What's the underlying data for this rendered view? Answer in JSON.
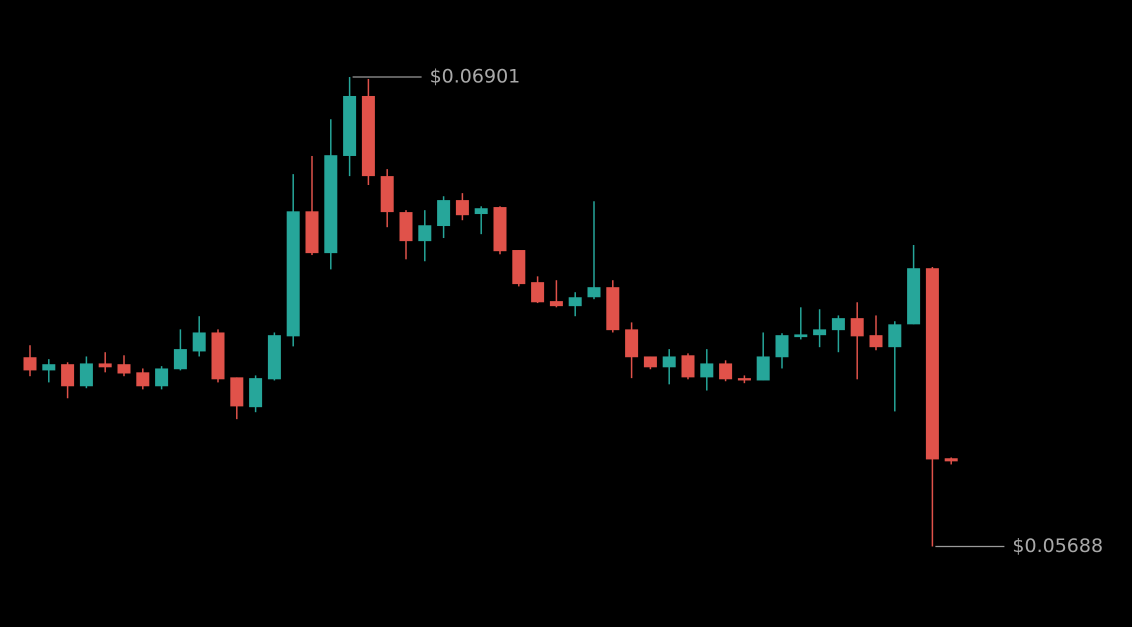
{
  "chart_data": {
    "type": "candlestick",
    "up_color": "#26a69a",
    "down_color": "#e0524a",
    "ylim": [
      0.0548,
      0.071
    ],
    "open": [
      0.06177,
      0.06143,
      0.06159,
      0.06102,
      0.06161,
      0.06159,
      0.06138,
      0.06102,
      0.06146,
      0.06192,
      0.06241,
      0.06125,
      0.06048,
      0.0612,
      0.06231,
      0.06554,
      0.06446,
      0.06697,
      0.06852,
      0.06645,
      0.06552,
      0.06477,
      0.06516,
      0.06583,
      0.06547,
      0.06565,
      0.06454,
      0.06371,
      0.06322,
      0.06309,
      0.06332,
      0.06358,
      0.06249,
      0.06179,
      0.06151,
      0.06182,
      0.06125,
      0.06161,
      0.06123,
      0.06117,
      0.06177,
      0.06229,
      0.06234,
      0.06247,
      0.06278,
      0.06234,
      0.06203,
      0.06262,
      0.06407,
      0.05916
    ],
    "high": [
      0.06208,
      0.06172,
      0.06164,
      0.06179,
      0.0619,
      0.06182,
      0.06148,
      0.06154,
      0.06249,
      0.06283,
      0.06249,
      0.06125,
      0.0613,
      0.06241,
      0.0665,
      0.06697,
      0.06792,
      0.06901,
      0.06896,
      0.06663,
      0.06557,
      0.06557,
      0.06593,
      0.06601,
      0.06567,
      0.06567,
      0.06454,
      0.06386,
      0.06376,
      0.06345,
      0.0658,
      0.06376,
      0.06267,
      0.06179,
      0.06198,
      0.06187,
      0.06198,
      0.06169,
      0.0613,
      0.06241,
      0.06239,
      0.06306,
      0.06301,
      0.06285,
      0.06319,
      0.06285,
      0.0627,
      0.06467,
      0.0641,
      0.05918
    ],
    "low": [
      0.06128,
      0.06112,
      0.06071,
      0.06097,
      0.06138,
      0.06128,
      0.06094,
      0.06094,
      0.06143,
      0.06179,
      0.06112,
      0.06017,
      0.06035,
      0.06117,
      0.06205,
      0.06441,
      0.06404,
      0.06645,
      0.06622,
      0.06513,
      0.0643,
      0.06425,
      0.06485,
      0.06531,
      0.06495,
      0.06443,
      0.0636,
      0.06317,
      0.06306,
      0.06283,
      0.06327,
      0.06241,
      0.06123,
      0.06146,
      0.06107,
      0.0612,
      0.06091,
      0.06115,
      0.0611,
      0.06117,
      0.06148,
      0.06223,
      0.06203,
      0.0619,
      0.0612,
      0.06195,
      0.06037,
      0.06262,
      0.05688,
      0.059
    ],
    "close": [
      0.06143,
      0.06159,
      0.06102,
      0.06161,
      0.06151,
      0.06135,
      0.06102,
      0.06148,
      0.06198,
      0.06241,
      0.0612,
      0.0605,
      0.06123,
      0.06234,
      0.06554,
      0.06446,
      0.06699,
      0.06852,
      0.06645,
      0.06552,
      0.06477,
      0.06518,
      0.06583,
      0.06544,
      0.06562,
      0.06451,
      0.06366,
      0.06319,
      0.06309,
      0.06332,
      0.06358,
      0.06247,
      0.06177,
      0.06151,
      0.06179,
      0.06125,
      0.06161,
      0.0612,
      0.06117,
      0.06179,
      0.06234,
      0.06236,
      0.06249,
      0.06278,
      0.06231,
      0.06203,
      0.06262,
      0.06407,
      0.05913,
      0.05908
    ],
    "annotations": [
      {
        "value": 0.06901,
        "label": "$0.06901"
      },
      {
        "value": 0.05688,
        "label": "$0.05688"
      }
    ]
  }
}
